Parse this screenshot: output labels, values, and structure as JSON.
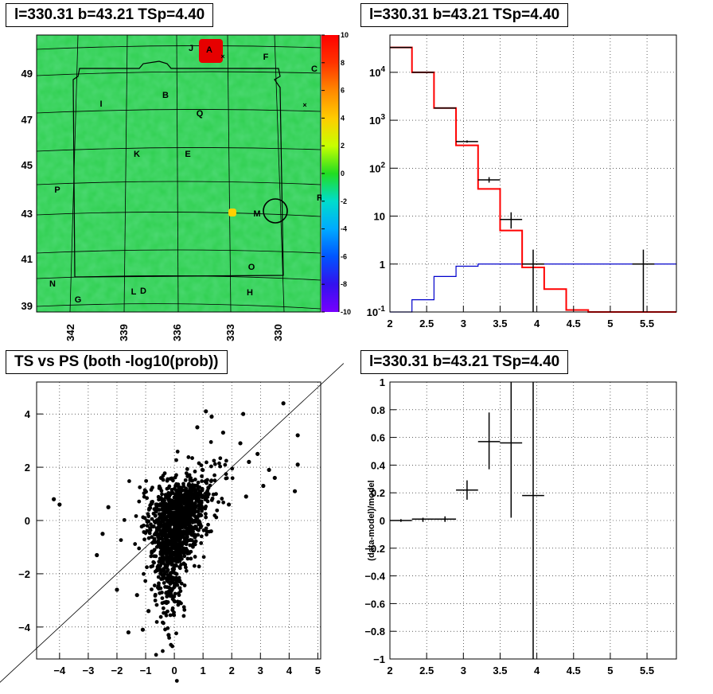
{
  "panels": {
    "map_title": "l=330.31 b=43.21 TSp=4.40",
    "spectrum_title": "l=330.31 b=43.21 TSp=4.40",
    "scatter_title": "TS vs PS (both -log10(prob))",
    "residual_title": "l=330.31 b=43.21 TSp=4.40"
  },
  "colors": {
    "model_line": "#ff0000",
    "background_line": "#0000cc",
    "data": "#000000"
  },
  "chart_data": [
    {
      "type": "heatmap",
      "title": "l=330.31 b=43.21 TSp=4.40",
      "x_ticks": [
        "342",
        "339",
        "336",
        "333",
        "330"
      ],
      "y_ticks": [
        "49",
        "47",
        "45",
        "43",
        "41",
        "39"
      ],
      "colorbar_ticks": [
        "10",
        "8",
        "6",
        "4",
        "2",
        "0",
        "-2",
        "-4",
        "-6",
        "-8",
        "-10"
      ],
      "zlim": [
        -10,
        10
      ],
      "source_labels": [
        "A",
        "B",
        "C",
        "D",
        "E",
        "F",
        "G",
        "H",
        "I",
        "J",
        "K",
        "L",
        "M",
        "N",
        "O",
        "P",
        "Q",
        "R"
      ],
      "marked_position": {
        "l": 330.31,
        "b": 43.21
      }
    },
    {
      "type": "line",
      "title": "l=330.31 b=43.21 TSp=4.40",
      "yscale": "log",
      "xlim": [
        2,
        5.9
      ],
      "ylim": [
        0.1,
        60000
      ],
      "x_ticks": [
        "2",
        "2.5",
        "3",
        "3.5",
        "4",
        "4.5",
        "5",
        "5.5"
      ],
      "y_ticks": [
        "10^-1",
        "1",
        "10",
        "10^2",
        "10^3",
        "10^4"
      ],
      "bin_edges": [
        2.0,
        2.3,
        2.6,
        2.9,
        3.2,
        3.5,
        3.8,
        4.1,
        4.4,
        4.7,
        5.0,
        5.3,
        5.6,
        5.9
      ],
      "model": [
        33000,
        10000,
        1800,
        300,
        37,
        5,
        0.85,
        0.3,
        0.11,
        0.1,
        0.1,
        0.1,
        0.1
      ],
      "background": [
        0.1,
        0.18,
        0.55,
        0.9,
        1.0,
        1.0,
        1.0,
        1.0,
        1.0,
        1.0,
        1.0,
        1.0,
        1.0
      ],
      "data_points": [
        {
          "x": 2.15,
          "y": 33000,
          "xerr": 0.15,
          "ylo": 32800,
          "yhi": 33200
        },
        {
          "x": 2.45,
          "y": 10000,
          "xerr": 0.15,
          "ylo": 9900,
          "yhi": 10100
        },
        {
          "x": 2.75,
          "y": 1800,
          "xerr": 0.15,
          "ylo": 1760,
          "yhi": 1840
        },
        {
          "x": 3.05,
          "y": 360,
          "xerr": 0.15,
          "ylo": 340,
          "yhi": 380
        },
        {
          "x": 3.35,
          "y": 57,
          "xerr": 0.15,
          "ylo": 50,
          "yhi": 65
        },
        {
          "x": 3.65,
          "y": 8.5,
          "xerr": 0.15,
          "ylo": 5.5,
          "yhi": 12
        },
        {
          "x": 3.95,
          "y": 1,
          "xerr": 0.15,
          "ylo": 0.1,
          "yhi": 2
        },
        {
          "x": 5.45,
          "y": 1,
          "xerr": 0.15,
          "ylo": 0.1,
          "yhi": 2
        }
      ]
    },
    {
      "type": "scatter",
      "title": "TS vs PS (both -log10(prob))",
      "xlim": [
        -4.8,
        5.1
      ],
      "ylim": [
        -5.2,
        5.2
      ],
      "x_ticks": [
        "−4",
        "−3",
        "−2",
        "−1",
        "0",
        "1",
        "2",
        "3",
        "4",
        "5"
      ],
      "y_ticks": [
        "4",
        "2",
        "0",
        "−2",
        "−4"
      ],
      "reference_line": "y = x",
      "outlier_points": [
        {
          "x": -4.2,
          "y": 0.8
        },
        {
          "x": -4.0,
          "y": 0.6
        },
        {
          "x": -2.3,
          "y": 0.5
        },
        {
          "x": -2.5,
          "y": -0.5
        },
        {
          "x": -2.7,
          "y": -1.3
        },
        {
          "x": -1.6,
          "y": -4.2
        },
        {
          "x": -1.1,
          "y": -4.1
        },
        {
          "x": -0.2,
          "y": -4.3
        },
        {
          "x": -0.9,
          "y": -3.4
        },
        {
          "x": 1.1,
          "y": 4.1
        },
        {
          "x": 1.3,
          "y": 3.9
        },
        {
          "x": 2.4,
          "y": 4.0
        },
        {
          "x": 2.9,
          "y": 2.5
        },
        {
          "x": 3.3,
          "y": 1.9
        },
        {
          "x": 3.8,
          "y": 4.4
        },
        {
          "x": 4.3,
          "y": 3.2
        },
        {
          "x": 4.3,
          "y": 2.1
        },
        {
          "x": 4.2,
          "y": 1.1
        },
        {
          "x": 3.1,
          "y": 1.3
        },
        {
          "x": 2.5,
          "y": 0.9
        },
        {
          "x": 1.9,
          "y": 0.6
        },
        {
          "x": 2.3,
          "y": 2.9
        },
        {
          "x": 1.7,
          "y": 3.3
        },
        {
          "x": 0.8,
          "y": 3.5
        },
        {
          "x": 2.6,
          "y": 2.2
        },
        {
          "x": 3.5,
          "y": 1.6
        },
        {
          "x": -2.0,
          "y": -2.6
        },
        {
          "x": -1.3,
          "y": -2.8
        }
      ]
    },
    {
      "type": "scatter",
      "title": "l=330.31 b=43.21 TSp=4.40",
      "ylabel": "(data-model)/model",
      "xlim": [
        2,
        5.9
      ],
      "ylim": [
        -1,
        1
      ],
      "x_ticks": [
        "2",
        "2.5",
        "3",
        "3.5",
        "4",
        "4.5",
        "5",
        "5.5"
      ],
      "y_ticks": [
        "1",
        "0.8",
        "0.6",
        "0.4",
        "0.2",
        "0",
        "−0.2",
        "−0.4",
        "−0.6",
        "−0.8",
        "−1"
      ],
      "points": [
        {
          "x": 2.15,
          "y": 0.0,
          "xerr": 0.15,
          "ylo": -0.01,
          "yhi": 0.01
        },
        {
          "x": 2.45,
          "y": 0.01,
          "xerr": 0.15,
          "ylo": -0.01,
          "yhi": 0.02
        },
        {
          "x": 2.75,
          "y": 0.01,
          "xerr": 0.15,
          "ylo": -0.01,
          "yhi": 0.03
        },
        {
          "x": 3.05,
          "y": 0.22,
          "xerr": 0.15,
          "ylo": 0.15,
          "yhi": 0.29
        },
        {
          "x": 3.35,
          "y": 0.57,
          "xerr": 0.15,
          "ylo": 0.37,
          "yhi": 0.78
        },
        {
          "x": 3.65,
          "y": 0.56,
          "xerr": 0.15,
          "ylo": 0.02,
          "yhi": 1.0
        },
        {
          "x": 3.95,
          "y": 0.18,
          "xerr": 0.15,
          "ylo": -1.0,
          "yhi": 1.0
        }
      ]
    }
  ]
}
